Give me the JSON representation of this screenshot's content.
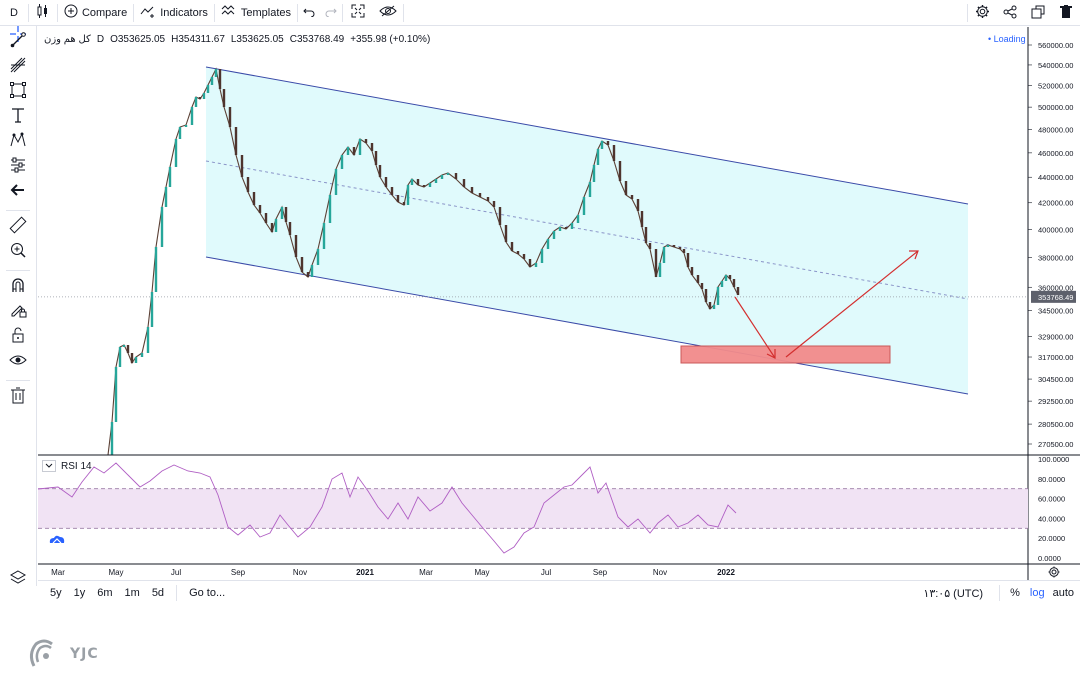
{
  "toolbar": {
    "interval": "D",
    "compare_label": "Compare",
    "indicators_label": "Indicators",
    "templates_label": "Templates"
  },
  "legend": {
    "symbol": "کل هم وزن",
    "interval": "D",
    "open": "O353625.05",
    "high": "H354311.67",
    "low": "L353625.05",
    "close": "C353768.49",
    "change": "+355.98 (+0.10%)",
    "loading": "• Loading"
  },
  "price_axis": {
    "labels": [
      "560000.00",
      "540000.00",
      "520000.00",
      "500000.00",
      "480000.00",
      "460000.00",
      "440000.00",
      "420000.00",
      "400000.00",
      "380000.00",
      "360000.00",
      "345000.00",
      "329000.00",
      "317000.00",
      "304500.00",
      "292500.00",
      "280500.00",
      "270500.00"
    ],
    "current_price": "353768.49"
  },
  "rsi": {
    "label": "RSI 14",
    "axis_labels": [
      "100.0000",
      "80.0000",
      "60.0000",
      "40.0000",
      "20.0000",
      "0.0000"
    ],
    "band_upper": 70,
    "band_lower": 30
  },
  "time_axis": {
    "labels": [
      "Mar",
      "May",
      "Jul",
      "Sep",
      "Nov",
      "2021",
      "Mar",
      "May",
      "Jul",
      "Sep",
      "Nov",
      "2022"
    ]
  },
  "bottom": {
    "ranges": [
      "5y",
      "1y",
      "6m",
      "1m",
      "5d"
    ],
    "goto": "Go to...",
    "clock": "۱۳:۰۵ (UTC)",
    "percent": "%",
    "log": "log",
    "auto": "auto"
  },
  "watermark": "YJC",
  "colors": {
    "channel_fill": "#e0fafc",
    "channel_line": "#3a4aa8",
    "target_zone": "#f28b8b",
    "arrow": "#d32f2f",
    "rsi_line": "#b05fc4",
    "rsi_band": "#f1e3f4",
    "candle_up": "#26a69a",
    "candle_down": "#4e342e"
  },
  "chart_data": {
    "type": "line",
    "note_series": "approximate daily close of the index",
    "x": [
      "2020-01",
      "2020-03",
      "2020-05",
      "2020-07",
      "2020-08",
      "2020-09",
      "2020-11",
      "2020-12",
      "2021-01",
      "2021-02",
      "2021-03",
      "2021-04",
      "2021-05",
      "2021-06",
      "2021-07",
      "2021-08",
      "2021-09",
      "2021-10",
      "2021-11",
      "2021-12",
      "2022-01"
    ],
    "series": [
      {
        "values": [
          240000,
          275000,
          330000,
          470000,
          530000,
          420000,
          368000,
          470000,
          460000,
          425000,
          440000,
          430000,
          385000,
          372000,
          405000,
          440000,
          470000,
          400000,
          387000,
          347000,
          353768
        ]
      },
      {
        "values": [
          78,
          65,
          88,
          82,
          92,
          40,
          30,
          75,
          72,
          35,
          65,
          50,
          30,
          20,
          55,
          65,
          90,
          35,
          40,
          25,
          38
        ]
      }
    ],
    "ylim": [
      262000,
      570000
    ],
    "rsi_ylim": [
      0,
      100
    ]
  }
}
